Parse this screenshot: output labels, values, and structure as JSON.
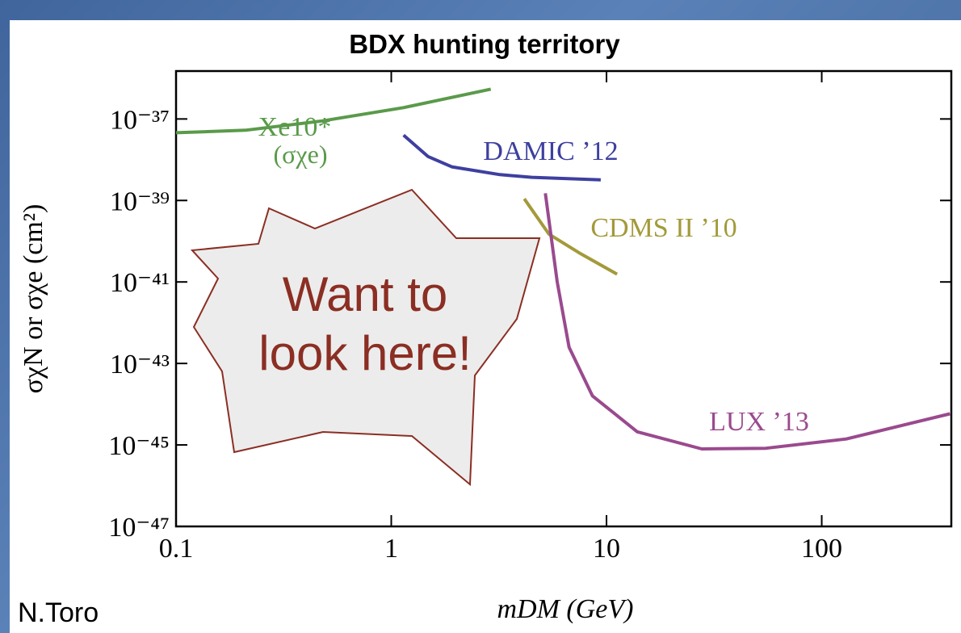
{
  "chart_data": {
    "type": "line",
    "title": "BDX hunting territory",
    "xlabel": "mDM (GeV)",
    "ylabel": "σχN or σχe (cm²)",
    "xscale": "log",
    "yscale": "log",
    "xlim": [
      0.1,
      400
    ],
    "ylim": [
      1e-47,
      1.5e-36
    ],
    "xticks": [
      0.1,
      1,
      10,
      100
    ],
    "yticks": [
      {
        "value": 1e-37,
        "label": "10⁻³⁷"
      },
      {
        "value": 1e-39,
        "label": "10⁻³⁹"
      },
      {
        "value": 1e-41,
        "label": "10⁻⁴¹"
      },
      {
        "value": 1e-43,
        "label": "10⁻⁴³"
      },
      {
        "value": 1e-45,
        "label": "10⁻⁴⁵"
      },
      {
        "value": 1e-47,
        "label": "10⁻⁴⁷"
      }
    ],
    "series": [
      {
        "name": "Xe10*",
        "color": "#5a9a4a",
        "x": [
          0.1,
          0.21,
          0.48,
          1.14,
          2.9
        ],
        "values": [
          4.6e-38,
          5.3e-38,
          9e-38,
          1.9e-37,
          5.4e-37
        ]
      },
      {
        "name": "DAMIC ’12",
        "color": "#3e3fa0",
        "x": [
          1.14,
          1.48,
          1.91,
          3.2,
          4.5,
          9.4
        ],
        "values": [
          4e-38,
          1.2e-38,
          6.7e-39,
          4.3e-39,
          3.7e-39,
          3.2e-39
        ]
      },
      {
        "name": "CDMS II ’10",
        "color": "#a39a3a",
        "x": [
          4.15,
          5.4,
          7.6,
          11.2
        ],
        "values": [
          1.1e-39,
          1.5e-40,
          4.9e-41,
          1.55e-41
        ]
      },
      {
        "name": "LUX ’13",
        "color": "#9a4a8e",
        "x": [
          5.2,
          5.9,
          6.7,
          8.6,
          13.9,
          27.7,
          55,
          130,
          394
        ],
        "values": [
          1.5e-39,
          1e-41,
          2.5e-43,
          1.6e-44,
          2.1e-45,
          8e-46,
          8.3e-46,
          1.4e-45,
          5.8e-45
        ]
      }
    ],
    "annotations": [
      "(σχe)",
      "Want to",
      "look here!"
    ],
    "credit": "N.Toro"
  }
}
